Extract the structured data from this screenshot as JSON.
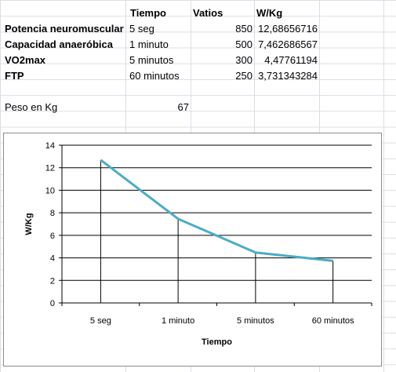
{
  "sheet": {
    "headers": {
      "tiempo": "Tiempo",
      "vatios": "Vatios",
      "wkg": "W/Kg"
    },
    "rows": [
      {
        "label": "Potencia neuromuscular",
        "tiempo": "5 seg",
        "vatios": "850",
        "wkg": "12,68656716"
      },
      {
        "label": "Capacidad anaeróbica",
        "tiempo": "1 minuto",
        "vatios": "500",
        "wkg": "7,462686567"
      },
      {
        "label": "VO2max",
        "tiempo": "5 minutos",
        "vatios": "300",
        "wkg": "4,47761194"
      },
      {
        "label": "FTP",
        "tiempo": "60 minutos",
        "vatios": "250",
        "wkg": "3,731343284"
      }
    ],
    "peso_label": "Peso en Kg",
    "peso_value": "67"
  },
  "chart_data": {
    "type": "line",
    "categories": [
      "5 seg",
      "1 minuto",
      "5 minutos",
      "60 minutos"
    ],
    "values": [
      12.68656716,
      7.462686567,
      4.47761194,
      3.731343284
    ],
    "xlabel": "Tiempo",
    "ylabel": "W/Kg",
    "ylim": [
      0,
      14
    ],
    "yticks": [
      0,
      2,
      4,
      6,
      8,
      10,
      12,
      14
    ],
    "grid": true,
    "drop_lines": true,
    "line_color": "#4bacc6"
  }
}
